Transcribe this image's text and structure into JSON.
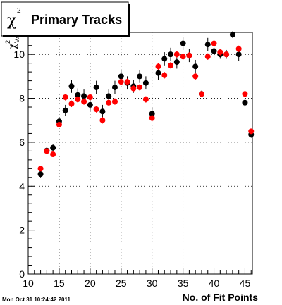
{
  "chart_data": {
    "type": "scatter",
    "title": "Primary Tracks",
    "title_symbol_base": "χ",
    "title_symbol_sup": "2",
    "ylabel_base": "χ",
    "ylabel_sup": "2",
    "ylabel_sub": "Vx",
    "xlabel": "No. of Fit Points",
    "timestamp": "Mon Oct 31 10:24:42 2011",
    "xlim": [
      10,
      46.2
    ],
    "ylim": [
      0,
      11
    ],
    "x_ticks": [
      10,
      15,
      20,
      25,
      30,
      35,
      40,
      45
    ],
    "y_ticks": [
      0,
      2,
      4,
      6,
      8,
      10
    ],
    "grid": true,
    "series": [
      {
        "color": "#000000",
        "points": [
          {
            "x": 12,
            "y": 4.55,
            "err": 0.15
          },
          {
            "x": 13,
            "y": 5.62,
            "err": 0.15
          },
          {
            "x": 14,
            "y": 5.75,
            "err": 0.15
          },
          {
            "x": 15,
            "y": 6.95,
            "err": 0.2
          },
          {
            "x": 16,
            "y": 7.45,
            "err": 0.25
          },
          {
            "x": 17,
            "y": 8.55,
            "err": 0.3
          },
          {
            "x": 18,
            "y": 8.15,
            "err": 0.3
          },
          {
            "x": 19,
            "y": 8.1,
            "err": 0.3
          },
          {
            "x": 20,
            "y": 7.7,
            "err": 0.3
          },
          {
            "x": 21,
            "y": 8.5,
            "err": 0.3
          },
          {
            "x": 22,
            "y": 7.4,
            "err": 0.3
          },
          {
            "x": 23,
            "y": 8.1,
            "err": 0.3
          },
          {
            "x": 24,
            "y": 8.5,
            "err": 0.3
          },
          {
            "x": 25,
            "y": 9.0,
            "err": 0.3
          },
          {
            "x": 26,
            "y": 8.7,
            "err": 0.3
          },
          {
            "x": 27,
            "y": 8.55,
            "err": 0.3
          },
          {
            "x": 28,
            "y": 9.0,
            "err": 0.3
          },
          {
            "x": 29,
            "y": 8.7,
            "err": 0.3
          },
          {
            "x": 30,
            "y": 7.3,
            "err": 0.3
          },
          {
            "x": 31,
            "y": 9.15,
            "err": 0.3
          },
          {
            "x": 32,
            "y": 9.8,
            "err": 0.3
          },
          {
            "x": 33,
            "y": 10.0,
            "err": 0.3
          },
          {
            "x": 34,
            "y": 9.65,
            "err": 0.3
          },
          {
            "x": 35,
            "y": 10.5,
            "err": 0.3
          },
          {
            "x": 36,
            "y": 9.95,
            "err": 0.3
          },
          {
            "x": 37,
            "y": 9.45,
            "err": 0.3
          },
          {
            "x": 38,
            "y": 8.2,
            "err": 0.15
          },
          {
            "x": 39,
            "y": 10.45,
            "err": 0.3
          },
          {
            "x": 40,
            "y": 10.15,
            "err": 0.3
          },
          {
            "x": 41,
            "y": 10.0,
            "err": 0.2
          },
          {
            "x": 42,
            "y": 10.0,
            "err": 0.2
          },
          {
            "x": 43,
            "y": 10.9,
            "err": 0.15
          },
          {
            "x": 44,
            "y": 10.0,
            "err": 0.3
          },
          {
            "x": 45,
            "y": 7.8,
            "err": 0.2
          },
          {
            "x": 46,
            "y": 6.35,
            "err": 0.15
          }
        ]
      },
      {
        "color": "#ff0000",
        "points": [
          {
            "x": 12,
            "y": 4.8,
            "err": 0.1
          },
          {
            "x": 13,
            "y": 5.6,
            "err": 0.1
          },
          {
            "x": 14,
            "y": 5.45,
            "err": 0.1
          },
          {
            "x": 15,
            "y": 6.8,
            "err": 0.1
          },
          {
            "x": 16,
            "y": 8.05,
            "err": 0.15
          },
          {
            "x": 17,
            "y": 7.75,
            "err": 0.15
          },
          {
            "x": 18,
            "y": 7.95,
            "err": 0.15
          },
          {
            "x": 19,
            "y": 7.85,
            "err": 0.15
          },
          {
            "x": 20,
            "y": 8.05,
            "err": 0.15
          },
          {
            "x": 21,
            "y": 7.5,
            "err": 0.15
          },
          {
            "x": 22,
            "y": 7.0,
            "err": 0.15
          },
          {
            "x": 23,
            "y": 7.8,
            "err": 0.15
          },
          {
            "x": 24,
            "y": 7.85,
            "err": 0.15
          },
          {
            "x": 25,
            "y": 8.75,
            "err": 0.15
          },
          {
            "x": 26,
            "y": 8.75,
            "err": 0.15
          },
          {
            "x": 27,
            "y": 8.45,
            "err": 0.15
          },
          {
            "x": 28,
            "y": 8.5,
            "err": 0.15
          },
          {
            "x": 29,
            "y": 7.95,
            "err": 0.15
          },
          {
            "x": 30,
            "y": 7.1,
            "err": 0.15
          },
          {
            "x": 31,
            "y": 9.45,
            "err": 0.15
          },
          {
            "x": 32,
            "y": 9.05,
            "err": 0.15
          },
          {
            "x": 33,
            "y": 9.5,
            "err": 0.15
          },
          {
            "x": 34,
            "y": 10.0,
            "err": 0.15
          },
          {
            "x": 35,
            "y": 9.9,
            "err": 0.15
          },
          {
            "x": 36,
            "y": 9.95,
            "err": 0.15
          },
          {
            "x": 37,
            "y": 9.0,
            "err": 0.15
          },
          {
            "x": 38,
            "y": 8.2,
            "err": 0.1
          },
          {
            "x": 39,
            "y": 9.9,
            "err": 0.15
          },
          {
            "x": 40,
            "y": 10.5,
            "err": 0.15
          },
          {
            "x": 41,
            "y": 10.1,
            "err": 0.15
          },
          {
            "x": 42,
            "y": 10.0,
            "err": 0.15
          },
          {
            "x": 44,
            "y": 10.25,
            "err": 0.15
          },
          {
            "x": 45,
            "y": 8.2,
            "err": 0.1
          },
          {
            "x": 46,
            "y": 6.5,
            "err": 0.1
          }
        ]
      }
    ]
  }
}
